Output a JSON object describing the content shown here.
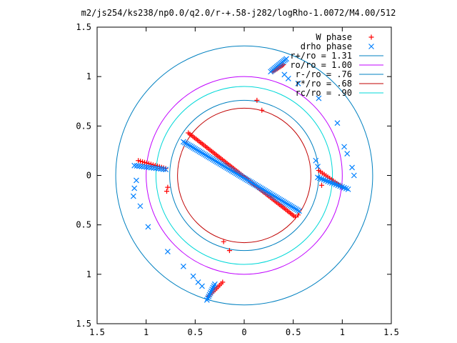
{
  "chart_data": {
    "type": "scatter",
    "title": "m2/js254/ks238/np0.0/q2.0/r-+.58-j282/logRho-1.0072/M4.00/512",
    "xlim": [
      -1.5,
      1.5
    ],
    "ylim": [
      -1.5,
      1.5
    ],
    "x_ticks": [
      -1.5,
      -1,
      -0.5,
      0,
      0.5,
      1,
      1.5
    ],
    "y_ticks": [
      -1.5,
      -1,
      -0.5,
      0,
      0.5,
      1,
      1.5
    ],
    "x_tick_labels": [
      "1.5",
      "1",
      "0.5",
      "0",
      "0.5",
      "1",
      "1.5"
    ],
    "y_tick_labels": [
      "1.5",
      "1",
      "0.5",
      "0",
      "0.5",
      "1",
      "1.5"
    ],
    "grid": false,
    "legend_position": "top-right",
    "legend": [
      {
        "label": "W phase",
        "marker": "+",
        "color": "#ff0000"
      },
      {
        "label": "drho phase",
        "marker": "x",
        "color": "#0080ff"
      },
      {
        "label": "r+/ro = 1.31",
        "line": true,
        "color": "#0080c0"
      },
      {
        "label": "ro/ro = 1.00",
        "line": true,
        "color": "#c000ff"
      },
      {
        "label": "r-/ro = .76",
        "line": true,
        "color": "#0080c0"
      },
      {
        "label": "r*/ro = .68",
        "line": true,
        "color": "#c00000"
      },
      {
        "label": "rc/ro = .90",
        "line": true,
        "color": "#00d8d8"
      }
    ],
    "circles": [
      {
        "r": 1.31,
        "color": "#0080c0"
      },
      {
        "r": 1.0,
        "color": "#c000ff"
      },
      {
        "r": 0.76,
        "color": "#0080c0"
      },
      {
        "r": 0.68,
        "color": "#c00000"
      },
      {
        "r": 0.9,
        "color": "#00d8d8"
      }
    ],
    "series": [
      {
        "name": "W phase",
        "color": "#ff0000",
        "marker": "+",
        "dense_segments": [
          {
            "from": [
              -0.57,
              0.43
            ],
            "to": [
              0.52,
              -0.42
            ],
            "n": 70
          },
          {
            "from": [
              0.29,
              1.05
            ],
            "to": [
              0.4,
              1.12
            ],
            "n": 10
          },
          {
            "from": [
              -1.08,
              0.15
            ],
            "to": [
              -0.8,
              0.07
            ],
            "n": 14
          },
          {
            "from": [
              0.76,
              0.05
            ],
            "to": [
              1.0,
              -0.12
            ],
            "n": 14
          },
          {
            "from": [
              -0.36,
              -1.22
            ],
            "to": [
              -0.22,
              -1.08
            ],
            "n": 10
          }
        ],
        "points": [
          [
            0.13,
            0.76
          ],
          [
            0.18,
            0.66
          ],
          [
            -0.79,
            -0.16
          ],
          [
            -0.78,
            -0.12
          ],
          [
            -0.21,
            -0.67
          ],
          [
            -0.15,
            -0.76
          ],
          [
            0.55,
            -0.4
          ],
          [
            0.79,
            -0.1
          ]
        ]
      },
      {
        "name": "drho phase",
        "color": "#0080ff",
        "marker": "x",
        "dense_segments": [
          {
            "from": [
              -0.62,
              0.34
            ],
            "to": [
              0.56,
              -0.36
            ],
            "n": 80
          },
          {
            "from": [
              0.27,
              1.05
            ],
            "to": [
              0.43,
              1.18
            ],
            "n": 14
          },
          {
            "from": [
              -1.12,
              0.1
            ],
            "to": [
              -0.8,
              0.06
            ],
            "n": 14
          },
          {
            "from": [
              0.75,
              -0.02
            ],
            "to": [
              1.06,
              -0.14
            ],
            "n": 16
          },
          {
            "from": [
              -0.38,
              -1.26
            ],
            "to": [
              -0.3,
              -1.1
            ],
            "n": 10
          }
        ],
        "points": [
          [
            -1.1,
            -0.05
          ],
          [
            -1.12,
            -0.13
          ],
          [
            -1.13,
            -0.21
          ],
          [
            -1.06,
            -0.31
          ],
          [
            -0.98,
            -0.52
          ],
          [
            -0.78,
            -0.77
          ],
          [
            -0.62,
            -0.92
          ],
          [
            -0.52,
            -1.02
          ],
          [
            -0.47,
            -1.08
          ],
          [
            -0.43,
            -1.12
          ],
          [
            0.41,
            1.02
          ],
          [
            0.45,
            0.98
          ],
          [
            0.55,
            0.93
          ],
          [
            0.76,
            0.78
          ],
          [
            0.95,
            0.53
          ],
          [
            1.02,
            0.29
          ],
          [
            1.05,
            0.22
          ],
          [
            1.1,
            0.08
          ],
          [
            1.12,
            0.0
          ],
          [
            0.73,
            0.15
          ],
          [
            0.75,
            0.09
          ]
        ]
      }
    ]
  }
}
